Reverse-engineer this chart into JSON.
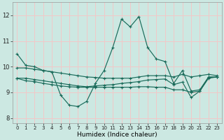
{
  "xlabel": "Humidex (Indice chaleur)",
  "background_color": "#cce8e2",
  "grid_color": "#f2c8c8",
  "line_color": "#1a6b5a",
  "xlim": [
    -0.5,
    23.5
  ],
  "ylim": [
    7.8,
    12.5
  ],
  "lines": [
    {
      "x": [
        0,
        1,
        2,
        3,
        4,
        5,
        6,
        7,
        8,
        9,
        10,
        11,
        12,
        13,
        14,
        15,
        16,
        17,
        18,
        19,
        20,
        21,
        22,
        23
      ],
      "y": [
        10.5,
        10.05,
        10.0,
        9.85,
        9.8,
        8.9,
        8.5,
        8.45,
        8.65,
        9.35,
        9.85,
        10.75,
        11.85,
        11.55,
        11.95,
        10.75,
        10.3,
        10.2,
        9.35,
        9.85,
        9.05,
        9.1,
        9.6,
        9.6
      ]
    },
    {
      "x": [
        0,
        1,
        2,
        3,
        4,
        5,
        6,
        7,
        8,
        9,
        10,
        11,
        12,
        13,
        14,
        15,
        16,
        17,
        18,
        19,
        20,
        21,
        22,
        23
      ],
      "y": [
        9.95,
        9.95,
        9.9,
        9.85,
        9.8,
        9.75,
        9.7,
        9.65,
        9.6,
        9.58,
        9.55,
        9.55,
        9.55,
        9.55,
        9.6,
        9.65,
        9.65,
        9.65,
        9.6,
        9.7,
        9.6,
        9.65,
        9.7,
        9.65
      ]
    },
    {
      "x": [
        0,
        1,
        2,
        3,
        4,
        5,
        6,
        7,
        8,
        9,
        10,
        11,
        12,
        13,
        14,
        15,
        16,
        17,
        18,
        19,
        20,
        21,
        22,
        23
      ],
      "y": [
        9.55,
        9.55,
        9.5,
        9.45,
        9.4,
        9.35,
        9.3,
        9.25,
        9.22,
        9.25,
        9.28,
        9.3,
        9.35,
        9.38,
        9.42,
        9.48,
        9.5,
        9.52,
        9.3,
        9.4,
        8.8,
        9.05,
        9.58,
        9.6
      ]
    },
    {
      "x": [
        0,
        1,
        2,
        3,
        4,
        5,
        6,
        7,
        8,
        9,
        10,
        11,
        12,
        13,
        14,
        15,
        16,
        17,
        18,
        19,
        20,
        21,
        22,
        23
      ],
      "y": [
        9.55,
        9.45,
        9.42,
        9.35,
        9.3,
        9.25,
        9.22,
        9.2,
        9.2,
        9.2,
        9.2,
        9.2,
        9.2,
        9.2,
        9.22,
        9.22,
        9.2,
        9.2,
        9.1,
        9.1,
        9.0,
        9.05,
        9.55,
        9.6
      ]
    }
  ]
}
